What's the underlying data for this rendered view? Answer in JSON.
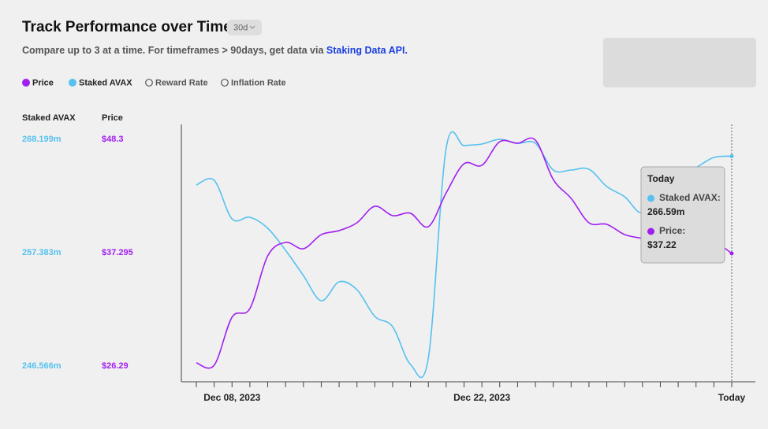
{
  "header": {
    "title": "Track Performance over Time",
    "range_button": "30d",
    "subtitle": "Compare up to 3 at a time. For timeframes > 90days, get data via ",
    "subtitle_link": "Staking Data API."
  },
  "chart_data": {
    "type": "line",
    "categories": [
      null,
      null,
      "Dec 08, 2023",
      null,
      null,
      null,
      null,
      null,
      null,
      null,
      null,
      null,
      null,
      null,
      null,
      null,
      "Dec 22, 2023",
      null,
      null,
      null,
      null,
      null,
      null,
      null,
      null,
      null,
      null,
      null,
      null,
      null,
      "Today"
    ],
    "series": [
      {
        "name": "Staked AVAX",
        "color": "#56c1f0",
        "axis": "y",
        "values": [
          263.84,
          264.29,
          260.61,
          260.76,
          259.71,
          257.61,
          255.2,
          252.8,
          254.6,
          253.85,
          251.3,
          250.32,
          246.72,
          247.32,
          267.37,
          267.6,
          267.75,
          268.2,
          267.82,
          267.82,
          265.27,
          265.27,
          265.35,
          263.69,
          262.72,
          261.21,
          263.84,
          264.59,
          265.5,
          266.47,
          266.59
        ]
      },
      {
        "name": "Price",
        "color": "#a020f0",
        "axis": "y2",
        "values": [
          26.6,
          26.37,
          31.03,
          31.87,
          36.99,
          38.29,
          37.68,
          39.05,
          39.44,
          40.2,
          41.8,
          40.89,
          41.12,
          39.82,
          43.1,
          45.93,
          45.78,
          48.07,
          47.92,
          48.22,
          44.4,
          42.57,
          40.2,
          40.05,
          39.05,
          38.67,
          38.14,
          38.9,
          39.66,
          38.52,
          37.22
        ]
      }
    ],
    "inactive_series": [
      "Reward Rate",
      "Inflation Rate"
    ],
    "ylim": [
      246.566,
      268.199
    ],
    "yticks": [
      {
        "value": 246.566,
        "label": "246.566m"
      },
      {
        "value": 257.383,
        "label": "257.383m"
      },
      {
        "value": 268.199,
        "label": "268.199m"
      }
    ],
    "y2lim": [
      26.29,
      48.3
    ],
    "y2ticks": [
      {
        "value": 26.29,
        "label": "$26.29"
      },
      {
        "value": 37.295,
        "label": "$37.295"
      },
      {
        "value": 48.3,
        "label": "$48.3"
      }
    ],
    "grid": false,
    "tooltip": {
      "items": [
        {
          "label": "Staked AVAX:",
          "value_label": "266.59m"
        },
        {
          "label": "Price:",
          "value_label": "$37.22"
        }
      ]
    }
  }
}
